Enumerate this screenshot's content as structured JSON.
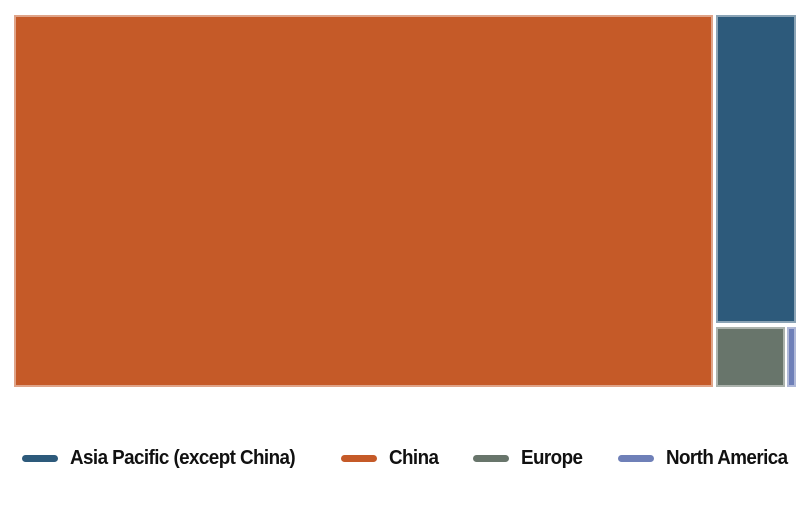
{
  "chart_data": {
    "type": "treemap",
    "title": "",
    "series": [
      {
        "name": "China",
        "share_pct": 89.4,
        "color": "#C55A28"
      },
      {
        "name": "Asia Pacific (except China)",
        "share_pct": 8.5,
        "color": "#2D5A7B"
      },
      {
        "name": "Europe",
        "share_pct": 1.4,
        "color": "#68756B"
      },
      {
        "name": "North America",
        "share_pct": 0.2,
        "color": "#6F80B8"
      }
    ],
    "legend_position": "bottom",
    "values_estimated_from_areas": true,
    "data_labels_shown": false
  },
  "legend": {
    "items": [
      {
        "label": "Asia Pacific (except China)",
        "color": "#2D5A7B"
      },
      {
        "label": "China",
        "color": "#C55A28"
      },
      {
        "label": "Europe",
        "color": "#68756B"
      },
      {
        "label": "North America",
        "color": "#6F80B8"
      }
    ]
  }
}
